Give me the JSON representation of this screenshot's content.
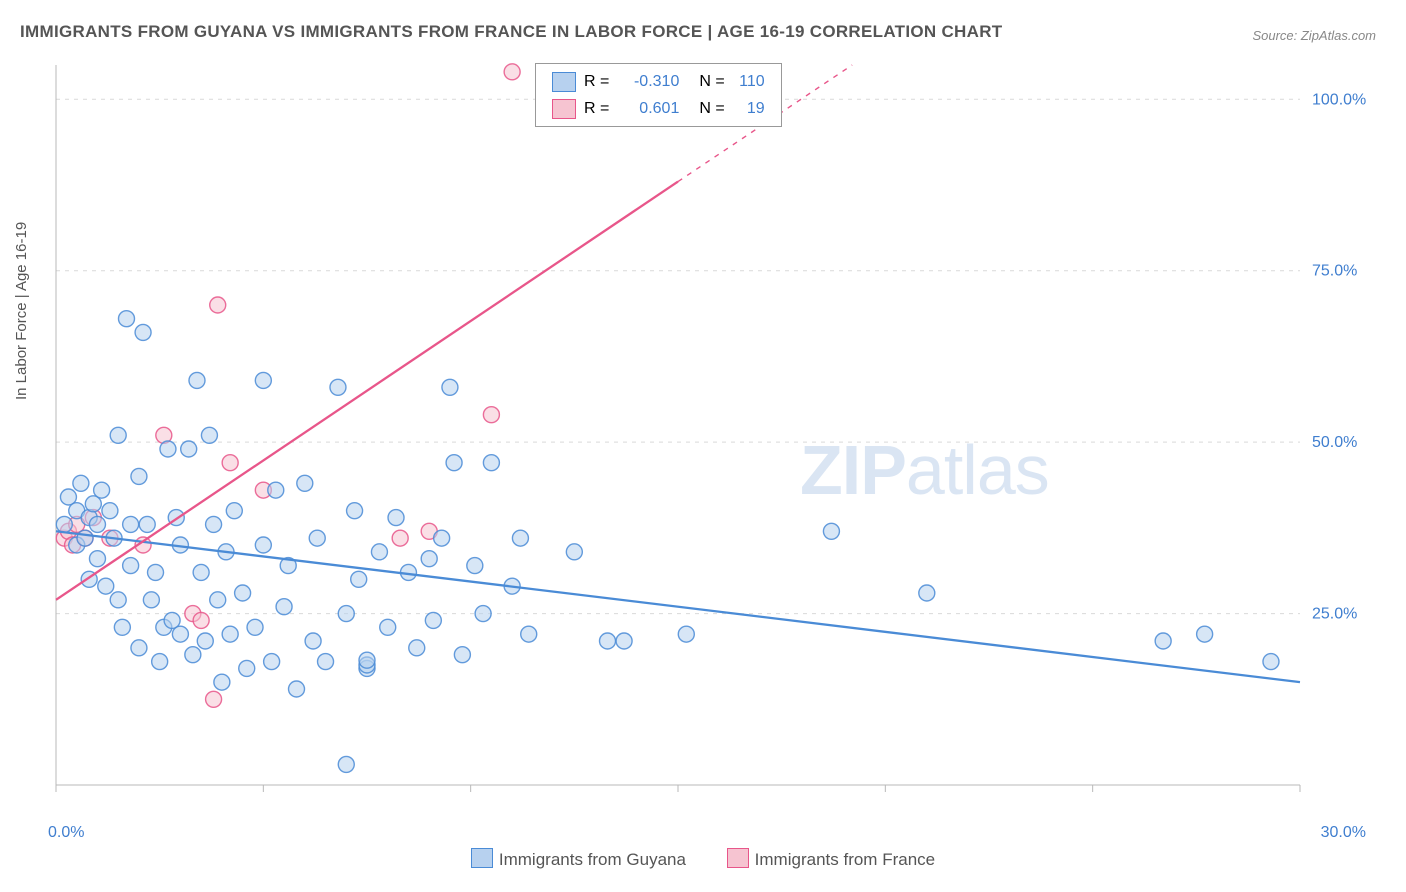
{
  "title": "IMMIGRANTS FROM GUYANA VS IMMIGRANTS FROM FRANCE IN LABOR FORCE | AGE 16-19 CORRELATION CHART",
  "source": "Source: ZipAtlas.com",
  "chart": {
    "type": "scatter",
    "ylabel": "In Labor Force | Age 16-19",
    "xlim": [
      0,
      30
    ],
    "ylim": [
      0,
      105
    ],
    "xtick_positions": [
      0,
      5,
      10,
      15,
      20,
      25,
      30
    ],
    "xtick_labels_shown": {
      "0": "0.0%",
      "30": "30.0%"
    },
    "ytick_positions": [
      25,
      50,
      75,
      100
    ],
    "ytick_labels": [
      "25.0%",
      "50.0%",
      "75.0%",
      "100.0%"
    ],
    "grid_color": "#d9d9d9",
    "grid_dash": "4,5",
    "axis_color": "#b8b8b8",
    "background_color": "#ffffff",
    "label_color": "#3f7ecf",
    "marker_radius": 8,
    "marker_opacity": 0.55,
    "marker_stroke_width": 1.4,
    "trend_line_width": 2.3,
    "watermark": "ZIPatlas",
    "series": {
      "guyana": {
        "label": "Immigrants from Guyana",
        "fill": "#b7d1ef",
        "stroke": "#4a8bd6",
        "R": "-0.310",
        "N": "110",
        "trend": {
          "x1": 0,
          "y1": 37,
          "x2": 30,
          "y2": 15,
          "dashed_from": null
        },
        "points": [
          [
            0.2,
            38
          ],
          [
            0.3,
            42
          ],
          [
            0.5,
            35
          ],
          [
            0.5,
            40
          ],
          [
            0.6,
            44
          ],
          [
            0.7,
            36
          ],
          [
            0.8,
            39
          ],
          [
            0.8,
            30
          ],
          [
            0.9,
            41
          ],
          [
            1.0,
            33
          ],
          [
            1.0,
            38
          ],
          [
            1.1,
            43
          ],
          [
            1.2,
            29
          ],
          [
            1.3,
            40
          ],
          [
            1.4,
            36
          ],
          [
            1.5,
            51
          ],
          [
            1.5,
            27
          ],
          [
            1.6,
            23
          ],
          [
            1.7,
            68
          ],
          [
            1.8,
            38
          ],
          [
            1.8,
            32
          ],
          [
            2.0,
            45
          ],
          [
            2.0,
            20
          ],
          [
            2.1,
            66
          ],
          [
            2.2,
            38
          ],
          [
            2.3,
            27
          ],
          [
            2.4,
            31
          ],
          [
            2.5,
            18
          ],
          [
            2.6,
            23
          ],
          [
            2.7,
            49
          ],
          [
            2.8,
            24
          ],
          [
            2.9,
            39
          ],
          [
            3.0,
            35
          ],
          [
            3.0,
            22
          ],
          [
            3.2,
            49
          ],
          [
            3.3,
            19
          ],
          [
            3.4,
            59
          ],
          [
            3.5,
            31
          ],
          [
            3.6,
            21
          ],
          [
            3.7,
            51
          ],
          [
            3.8,
            38
          ],
          [
            3.9,
            27
          ],
          [
            4.0,
            15
          ],
          [
            4.1,
            34
          ],
          [
            4.2,
            22
          ],
          [
            4.3,
            40
          ],
          [
            4.5,
            28
          ],
          [
            4.6,
            17
          ],
          [
            4.8,
            23
          ],
          [
            5.0,
            59
          ],
          [
            5.0,
            35
          ],
          [
            5.2,
            18
          ],
          [
            5.3,
            43
          ],
          [
            5.5,
            26
          ],
          [
            5.6,
            32
          ],
          [
            5.8,
            14
          ],
          [
            6.0,
            44
          ],
          [
            6.2,
            21
          ],
          [
            6.3,
            36
          ],
          [
            6.5,
            18
          ],
          [
            6.8,
            58
          ],
          [
            7.0,
            25
          ],
          [
            7.2,
            40
          ],
          [
            7.3,
            30
          ],
          [
            7.5,
            17
          ],
          [
            7.5,
            17.5
          ],
          [
            7.5,
            18.2
          ],
          [
            7.8,
            34
          ],
          [
            8.0,
            23
          ],
          [
            8.2,
            39
          ],
          [
            8.5,
            31
          ],
          [
            8.7,
            20
          ],
          [
            9.0,
            33
          ],
          [
            9.1,
            24
          ],
          [
            9.3,
            36
          ],
          [
            9.5,
            58
          ],
          [
            9.6,
            47
          ],
          [
            9.8,
            19
          ],
          [
            10.1,
            32
          ],
          [
            10.3,
            25
          ],
          [
            10.5,
            47
          ],
          [
            11.0,
            29
          ],
          [
            11.2,
            36
          ],
          [
            11.4,
            22
          ],
          [
            12.5,
            34
          ],
          [
            13.3,
            21
          ],
          [
            13.7,
            21
          ],
          [
            15.2,
            22
          ],
          [
            7.0,
            3
          ],
          [
            18.7,
            37
          ],
          [
            21.0,
            28
          ],
          [
            26.7,
            21
          ],
          [
            27.7,
            22
          ],
          [
            29.3,
            18
          ]
        ]
      },
      "france": {
        "label": "Immigrants from France",
        "fill": "#f6c4d1",
        "stroke": "#e8568a",
        "R": "0.601",
        "N": "19",
        "trend": {
          "x1": 0,
          "y1": 27,
          "x2": 19.2,
          "y2": 105,
          "solid_end_x": 15.0,
          "solid_end_y": 88
        },
        "points": [
          [
            0.2,
            36
          ],
          [
            0.3,
            37
          ],
          [
            0.4,
            35
          ],
          [
            0.5,
            38
          ],
          [
            0.7,
            36
          ],
          [
            0.9,
            39
          ],
          [
            1.3,
            36
          ],
          [
            2.1,
            35
          ],
          [
            2.6,
            51
          ],
          [
            3.3,
            25
          ],
          [
            3.5,
            24
          ],
          [
            3.8,
            12.5
          ],
          [
            3.9,
            70
          ],
          [
            4.2,
            47
          ],
          [
            5.0,
            43
          ],
          [
            8.3,
            36
          ],
          [
            9.0,
            37
          ],
          [
            10.5,
            54
          ],
          [
            11.0,
            104
          ]
        ]
      }
    },
    "legend_box": {
      "bg": "#ffffff",
      "border": "#999999",
      "text_color": "#555555",
      "value_color": "#3f7ecf"
    }
  },
  "bottom_legend": {
    "guyana": "Immigrants from Guyana",
    "france": "Immigrants from France"
  }
}
